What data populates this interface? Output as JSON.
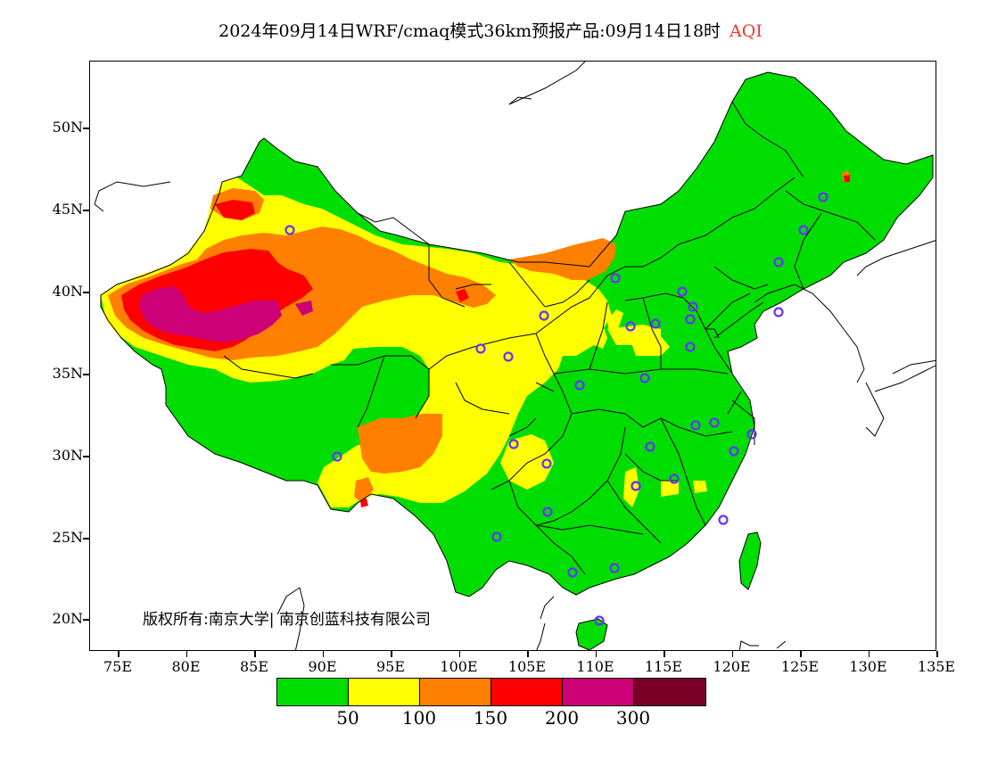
{
  "title": {
    "main": "2024年09月14日WRF/cmaq模式36km预报产品:09月14日18时",
    "variable": "AQI",
    "variable_color": "#ff3030"
  },
  "axes": {
    "lat_labels": [
      "50N",
      "45N",
      "40N",
      "35N",
      "30N",
      "25N",
      "20N"
    ],
    "lon_labels": [
      "75E",
      "80E",
      "85E",
      "90E",
      "95E",
      "100E",
      "105E",
      "110E",
      "115E",
      "120E",
      "125E",
      "130E",
      "135E"
    ]
  },
  "copyright": "版权所有:南京大学| 南京创蓝科技有限公司",
  "legend": {
    "colors": [
      "#00dd00",
      "#ffff00",
      "#ff8000",
      "#ff0000",
      "#cc0077",
      "#7a0028"
    ],
    "labels": [
      "50",
      "100",
      "150",
      "200",
      "300"
    ]
  },
  "colors": {
    "good": "#00dd00",
    "moderate": "#ffff00",
    "usg": "#ff8000",
    "unhealthy": "#ff0000",
    "very_unhealthy": "#cc0077",
    "station_marker": "#6633ff"
  }
}
